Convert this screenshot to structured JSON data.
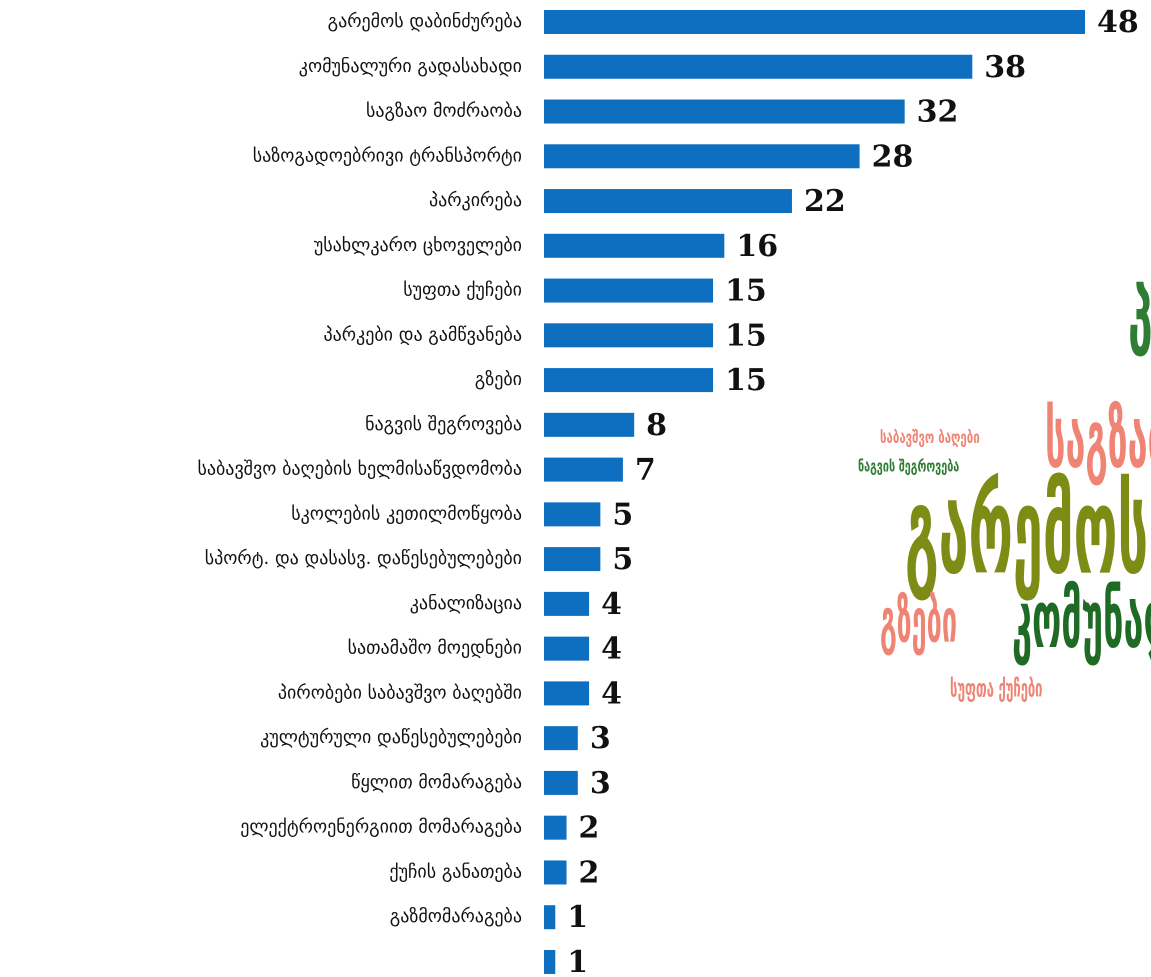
{
  "chart_data": {
    "type": "bar",
    "orientation": "horizontal",
    "categories": [
      "გარემოს დაბინძურება",
      "კომუნალური გადასახადი",
      "საგზაო მოძრაობა",
      "საზოგადოებრივი ტრანსპორტი",
      "პარკირება",
      "უსახლკარო ცხოველები",
      "სუფთა ქუჩები",
      "პარკები და გამწვანება",
      "გზები",
      "ნაგვის შეგროვება",
      "საბავშვო ბაღების ხელმისაწვდომობა",
      "სკოლების კეთილმოწყობა",
      "სპორტ. და დასასვ. დაწესებულებები",
      "კანალიზაცია",
      "სათამაშო მოედნები",
      "პირობები საბავშვო ბაღებში",
      "კულტურული დაწესებულებები",
      "წყლით მომარაგება",
      "ელექტროენერგიით მომარაგება",
      "ქუჩის განათება",
      "გაზმომარაგება",
      null
    ],
    "values": [
      48,
      38,
      32,
      28,
      22,
      16,
      15,
      15,
      15,
      8,
      7,
      5,
      5,
      4,
      4,
      4,
      3,
      3,
      2,
      2,
      1,
      1
    ],
    "color": "#0e6fc1",
    "xlim": [
      0,
      48
    ]
  },
  "word_cloud": {
    "words": [
      {
        "text": "პ",
        "color": "#2e7d32"
      },
      {
        "text": "საბავშვო ბაღები",
        "color": "#ef8474"
      },
      {
        "text": "ნაგვის შეგროვება",
        "color": "#2e7d32"
      },
      {
        "text": "საგზაო",
        "color": "#ef8474"
      },
      {
        "text": "გარემოს",
        "color": "#7d8c14"
      },
      {
        "text": "გზები",
        "color": "#ef8474"
      },
      {
        "text": "კომუნალური",
        "color": "#1f6b26"
      },
      {
        "text": "სუფთა ქუჩები",
        "color": "#ef8474"
      }
    ]
  }
}
